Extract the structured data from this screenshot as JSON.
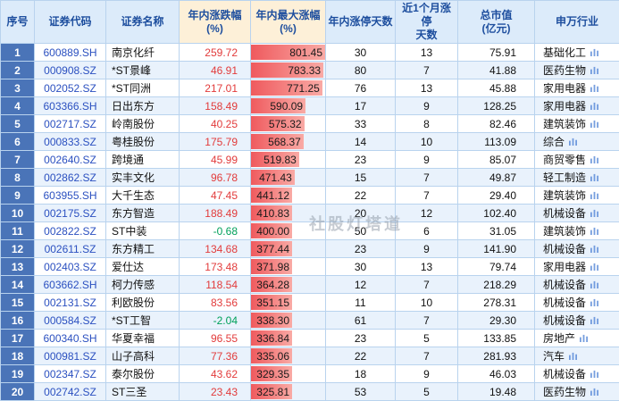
{
  "watermark": "社股灯塔道",
  "colors": {
    "grid": "#b9d3ee",
    "header_bg": "#dcebfa",
    "header_text": "#1d4e9e",
    "header_highlight_bg": "#fdf0d8",
    "seq_bg": "#4a74b8",
    "row_alt_bg": "#e9f2fc",
    "positive_red": "#e23b3b",
    "negative_green": "#00a05a",
    "code_blue": "#2b50c0",
    "bar_start": "#ef5a5e",
    "bar_end": "#f9aaa5"
  },
  "table": {
    "bar_max": 801.45,
    "headers": [
      {
        "label": "序号",
        "highlight": false
      },
      {
        "label": "证券代码",
        "highlight": false
      },
      {
        "label": "证券名称",
        "highlight": false
      },
      {
        "label": "年内涨跌幅\n(%)",
        "highlight": true
      },
      {
        "label": "年内最大涨幅\n(%)",
        "highlight": true
      },
      {
        "label": "年内涨停天数",
        "highlight": false
      },
      {
        "label": "近1个月涨停\n天数",
        "highlight": false
      },
      {
        "label": "总市值\n(亿元)",
        "highlight": false
      },
      {
        "label": "申万行业",
        "highlight": false
      }
    ],
    "rows": [
      {
        "seq": "1",
        "code": "600889.SH",
        "name": "南京化纤",
        "ytd_change": "259.72",
        "max_gain": "801.45",
        "limit_up_days": "30",
        "month_limit_up_days": "13",
        "market_cap": "75.91",
        "industry": "基础化工"
      },
      {
        "seq": "2",
        "code": "000908.SZ",
        "name": "*ST景峰",
        "ytd_change": "46.91",
        "max_gain": "783.33",
        "limit_up_days": "80",
        "month_limit_up_days": "7",
        "market_cap": "41.88",
        "industry": "医药生物"
      },
      {
        "seq": "3",
        "code": "002052.SZ",
        "name": "*ST同洲",
        "ytd_change": "217.01",
        "max_gain": "771.25",
        "limit_up_days": "76",
        "month_limit_up_days": "13",
        "market_cap": "45.88",
        "industry": "家用电器"
      },
      {
        "seq": "4",
        "code": "603366.SH",
        "name": "日出东方",
        "ytd_change": "158.49",
        "max_gain": "590.09",
        "limit_up_days": "17",
        "month_limit_up_days": "9",
        "market_cap": "128.25",
        "industry": "家用电器"
      },
      {
        "seq": "5",
        "code": "002717.SZ",
        "name": "岭南股份",
        "ytd_change": "40.25",
        "max_gain": "575.32",
        "limit_up_days": "33",
        "month_limit_up_days": "8",
        "market_cap": "82.46",
        "industry": "建筑装饰"
      },
      {
        "seq": "6",
        "code": "000833.SZ",
        "name": "粤桂股份",
        "ytd_change": "175.79",
        "max_gain": "568.37",
        "limit_up_days": "14",
        "month_limit_up_days": "10",
        "market_cap": "113.09",
        "industry": "综合"
      },
      {
        "seq": "7",
        "code": "002640.SZ",
        "name": "跨境通",
        "ytd_change": "45.99",
        "max_gain": "519.83",
        "limit_up_days": "23",
        "month_limit_up_days": "9",
        "market_cap": "85.07",
        "industry": "商贸零售"
      },
      {
        "seq": "8",
        "code": "002862.SZ",
        "name": "实丰文化",
        "ytd_change": "96.78",
        "max_gain": "471.43",
        "limit_up_days": "15",
        "month_limit_up_days": "7",
        "market_cap": "49.87",
        "industry": "轻工制造"
      },
      {
        "seq": "9",
        "code": "603955.SH",
        "name": "大千生态",
        "ytd_change": "47.45",
        "max_gain": "441.12",
        "limit_up_days": "22",
        "month_limit_up_days": "7",
        "market_cap": "29.40",
        "industry": "建筑装饰"
      },
      {
        "seq": "10",
        "code": "002175.SZ",
        "name": "东方智造",
        "ytd_change": "188.49",
        "max_gain": "410.83",
        "limit_up_days": "20",
        "month_limit_up_days": "12",
        "market_cap": "102.40",
        "industry": "机械设备"
      },
      {
        "seq": "11",
        "code": "002822.SZ",
        "name": "ST中装",
        "ytd_change": "-0.68",
        "max_gain": "400.00",
        "limit_up_days": "50",
        "month_limit_up_days": "6",
        "market_cap": "31.05",
        "industry": "建筑装饰"
      },
      {
        "seq": "12",
        "code": "002611.SZ",
        "name": "东方精工",
        "ytd_change": "134.68",
        "max_gain": "377.44",
        "limit_up_days": "23",
        "month_limit_up_days": "9",
        "market_cap": "141.90",
        "industry": "机械设备"
      },
      {
        "seq": "13",
        "code": "002403.SZ",
        "name": "爱仕达",
        "ytd_change": "173.48",
        "max_gain": "371.98",
        "limit_up_days": "30",
        "month_limit_up_days": "13",
        "market_cap": "79.74",
        "industry": "家用电器"
      },
      {
        "seq": "14",
        "code": "603662.SH",
        "name": "柯力传感",
        "ytd_change": "118.54",
        "max_gain": "364.28",
        "limit_up_days": "12",
        "month_limit_up_days": "7",
        "market_cap": "218.29",
        "industry": "机械设备"
      },
      {
        "seq": "15",
        "code": "002131.SZ",
        "name": "利欧股份",
        "ytd_change": "83.56",
        "max_gain": "351.15",
        "limit_up_days": "11",
        "month_limit_up_days": "10",
        "market_cap": "278.31",
        "industry": "机械设备"
      },
      {
        "seq": "16",
        "code": "000584.SZ",
        "name": "*ST工智",
        "ytd_change": "-2.04",
        "max_gain": "338.30",
        "limit_up_days": "61",
        "month_limit_up_days": "7",
        "market_cap": "29.30",
        "industry": "机械设备"
      },
      {
        "seq": "17",
        "code": "600340.SH",
        "name": "华夏幸福",
        "ytd_change": "96.55",
        "max_gain": "336.84",
        "limit_up_days": "23",
        "month_limit_up_days": "5",
        "market_cap": "133.85",
        "industry": "房地产"
      },
      {
        "seq": "18",
        "code": "000981.SZ",
        "name": "山子高科",
        "ytd_change": "77.36",
        "max_gain": "335.06",
        "limit_up_days": "22",
        "month_limit_up_days": "7",
        "market_cap": "281.93",
        "industry": "汽车"
      },
      {
        "seq": "19",
        "code": "002347.SZ",
        "name": "泰尔股份",
        "ytd_change": "43.62",
        "max_gain": "329.35",
        "limit_up_days": "18",
        "month_limit_up_days": "9",
        "market_cap": "46.03",
        "industry": "机械设备"
      },
      {
        "seq": "20",
        "code": "002742.SZ",
        "name": "ST三圣",
        "ytd_change": "23.43",
        "max_gain": "325.81",
        "limit_up_days": "53",
        "month_limit_up_days": "5",
        "market_cap": "19.48",
        "industry": "医药生物"
      }
    ]
  }
}
